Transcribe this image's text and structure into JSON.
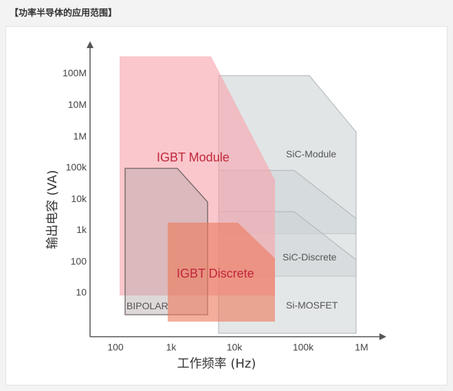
{
  "heading": "【功率半导体的应用范围】",
  "axes": {
    "xlabel": "工作频率 (Hz)",
    "ylabel": "输出电容 (VA)",
    "xticks": [
      "100",
      "1k",
      "10k",
      "100k",
      "1M"
    ],
    "yticks": [
      "100M",
      "10M",
      "1M",
      "100k",
      "10k",
      "1k",
      "100",
      "10"
    ]
  },
  "regions": {
    "igbt_module": "IGBT Module",
    "igbt_discrete": "IGBT Discrete",
    "bipolar": "BIPOLAR",
    "sic_module": "SiC-Module",
    "sic_discrete": "SiC-Discrete",
    "si_mosfet": "Si-MOSFET"
  },
  "colors": {
    "igbt_module_fill": "#f7a5ad",
    "igbt_module_label": "#c0273a",
    "igbt_discrete_fill": "#ee7a5e",
    "igbt_discrete_label": "#c0273a",
    "grey_region_fill": "#cdd3d6",
    "grey_region_stroke": "#aab2b6",
    "grey_label": "#555555"
  }
}
